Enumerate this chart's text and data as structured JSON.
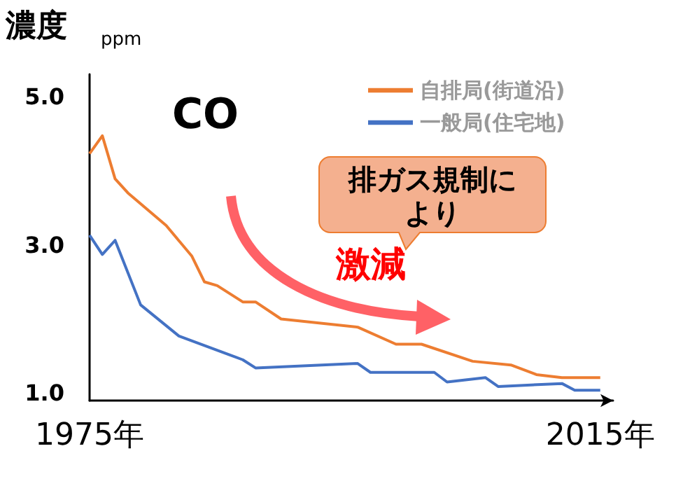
{
  "chart_data": {
    "type": "line",
    "title": "CO",
    "ylabel": "濃度",
    "annotations": [
      "ppm",
      "排ガス規制により",
      "激減"
    ],
    "xlim": [
      1975,
      2016
    ],
    "xticks": [
      {
        "value": 1975,
        "label": "1975年"
      },
      {
        "value": 2015,
        "label": "2015年"
      }
    ],
    "ylim": [
      0.9,
      5.3
    ],
    "yticks": [
      {
        "value": 1,
        "label": "1.0"
      },
      {
        "value": 3,
        "label": "3.0"
      },
      {
        "value": 5,
        "label": "5.0"
      }
    ],
    "grid": false,
    "legend": "top right",
    "marker": "none",
    "line_style": "solid",
    "series": [
      {
        "name": "自排局(街道沿)",
        "color": "#ed7d31",
        "x": [
          1975,
          1976,
          1977,
          1978,
          1981,
          1983,
          1984,
          1985,
          1987,
          1988,
          1990,
          1996,
          1999,
          2001,
          2005,
          2008,
          2010,
          2012,
          2015
        ],
        "values": [
          4.23,
          4.47,
          3.89,
          3.7,
          3.26,
          2.85,
          2.5,
          2.45,
          2.23,
          2.23,
          2.0,
          1.89,
          1.66,
          1.66,
          1.43,
          1.38,
          1.25,
          1.21,
          1.21
        ]
      },
      {
        "name": "一般局(住宅地)",
        "color": "#4472c4",
        "x": [
          1975,
          1976,
          1977,
          1979,
          1982,
          1987,
          1988,
          1996,
          1997,
          2002,
          2003,
          2006,
          2007,
          2012,
          2013,
          2015
        ],
        "values": [
          3.13,
          2.87,
          3.06,
          2.19,
          1.77,
          1.45,
          1.34,
          1.4,
          1.28,
          1.28,
          1.15,
          1.21,
          1.09,
          1.13,
          1.04,
          1.04
        ]
      }
    ]
  }
}
